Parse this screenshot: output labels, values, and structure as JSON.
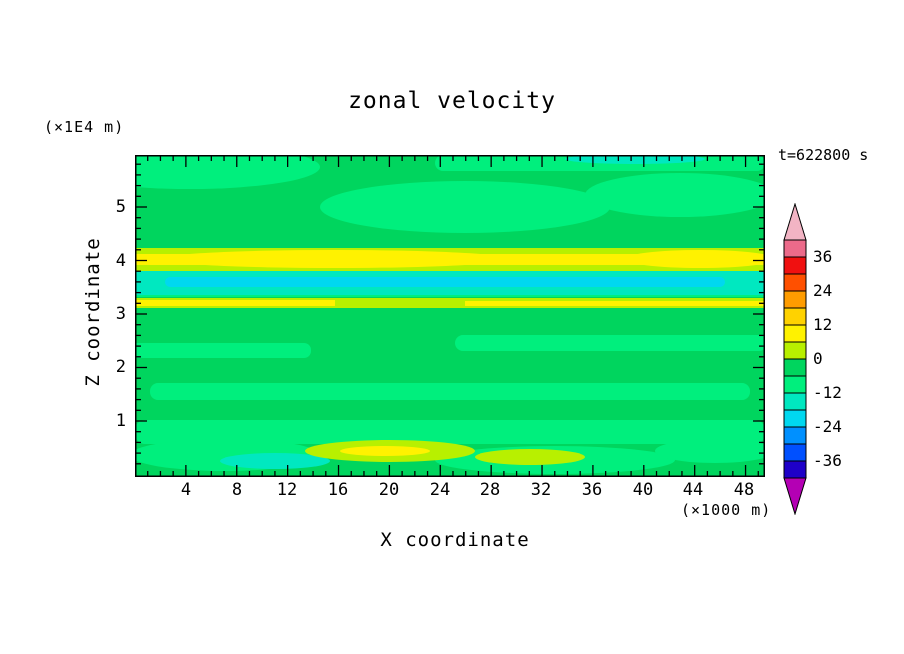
{
  "title": "zonal velocity",
  "annotations": {
    "time": "t=622800 s",
    "y_axis_units": "(×1E4 m)",
    "x_axis_units": "(×1000 m)"
  },
  "axes": {
    "x_label": "X coordinate",
    "y_label": "Z coordinate",
    "x_tick_labels": [
      "4",
      "8",
      "12",
      "16",
      "20",
      "24",
      "28",
      "32",
      "36",
      "40",
      "44",
      "48"
    ],
    "y_tick_labels": [
      "5",
      "4",
      "3",
      "2",
      "1"
    ]
  },
  "palette": {
    "green": "#00d55e",
    "spring_green": "#00ef7d",
    "turquoise": "#00e8c0",
    "cyan": "#00d8f0",
    "chartreuse": "#b8f000",
    "yellow": "#fff200",
    "frame": "#000000"
  },
  "colorbar": {
    "labels": [
      "36",
      "24",
      "12",
      "0",
      "-12",
      "-24",
      "-36"
    ],
    "arrow_top_color": "#f2b4c4",
    "arrow_bottom_color": "#b400b4",
    "segment_colors": [
      "#ec6a8a",
      "#f01010",
      "#ff5000",
      "#ff9c00",
      "#ffd200",
      "#fff200",
      "#b8f000",
      "#00d55e",
      "#00ef7d",
      "#00e8c0",
      "#00d8f0",
      "#0090ff",
      "#0050ff",
      "#1e00c8"
    ]
  },
  "chart_data": {
    "type": "heatmap",
    "subtype": "filled_contour",
    "title": "zonal velocity",
    "xlabel": "X coordinate",
    "x_units": "(×1000 m)",
    "ylabel": "Z coordinate",
    "y_units": "(×1E4 m)",
    "x_ticks": [
      4,
      8,
      12,
      16,
      20,
      24,
      28,
      32,
      36,
      40,
      44,
      48
    ],
    "x_range": [
      0,
      50
    ],
    "y_ticks": [
      1,
      2,
      3,
      4,
      5
    ],
    "y_range": [
      0,
      6
    ],
    "time_annotation": "t=622800 s",
    "colorbar_labels": [
      36,
      24,
      12,
      0,
      -12,
      -24,
      -36
    ],
    "contour_levels": [
      -42,
      -36,
      -30,
      -24,
      -18,
      -12,
      -6,
      0,
      6,
      12,
      18,
      24,
      30,
      36,
      42
    ],
    "legend_position": "right-vertical-colorbar",
    "field_bands": [
      {
        "z_approx": "5.0-6.0",
        "value_range": "-6 to 6",
        "description": "green background with lighter spring-green patches across the top"
      },
      {
        "z_approx": "4.0-4.2",
        "value_range": "12 to 18",
        "description": "bright yellow horizontal band spanning full width, chartreuse edges"
      },
      {
        "z_approx": "3.5-3.9",
        "value_range": "-12 to -6",
        "description": "turquoise/cyan horizontal band spanning full width"
      },
      {
        "z_approx": "3.3-3.45",
        "value_range": "6 to 12",
        "description": "thin yellow-green band with yellow core"
      },
      {
        "z_approx": "1.2-3.2",
        "value_range": "-6 to 6",
        "description": "green field with spring-green horizontal streaks"
      },
      {
        "z_approx": "0.1-0.9",
        "value_range": "-12 to 12",
        "description": "green with chartreuse/yellow blobs near center-bottom and turquoise patches lower left"
      }
    ]
  }
}
